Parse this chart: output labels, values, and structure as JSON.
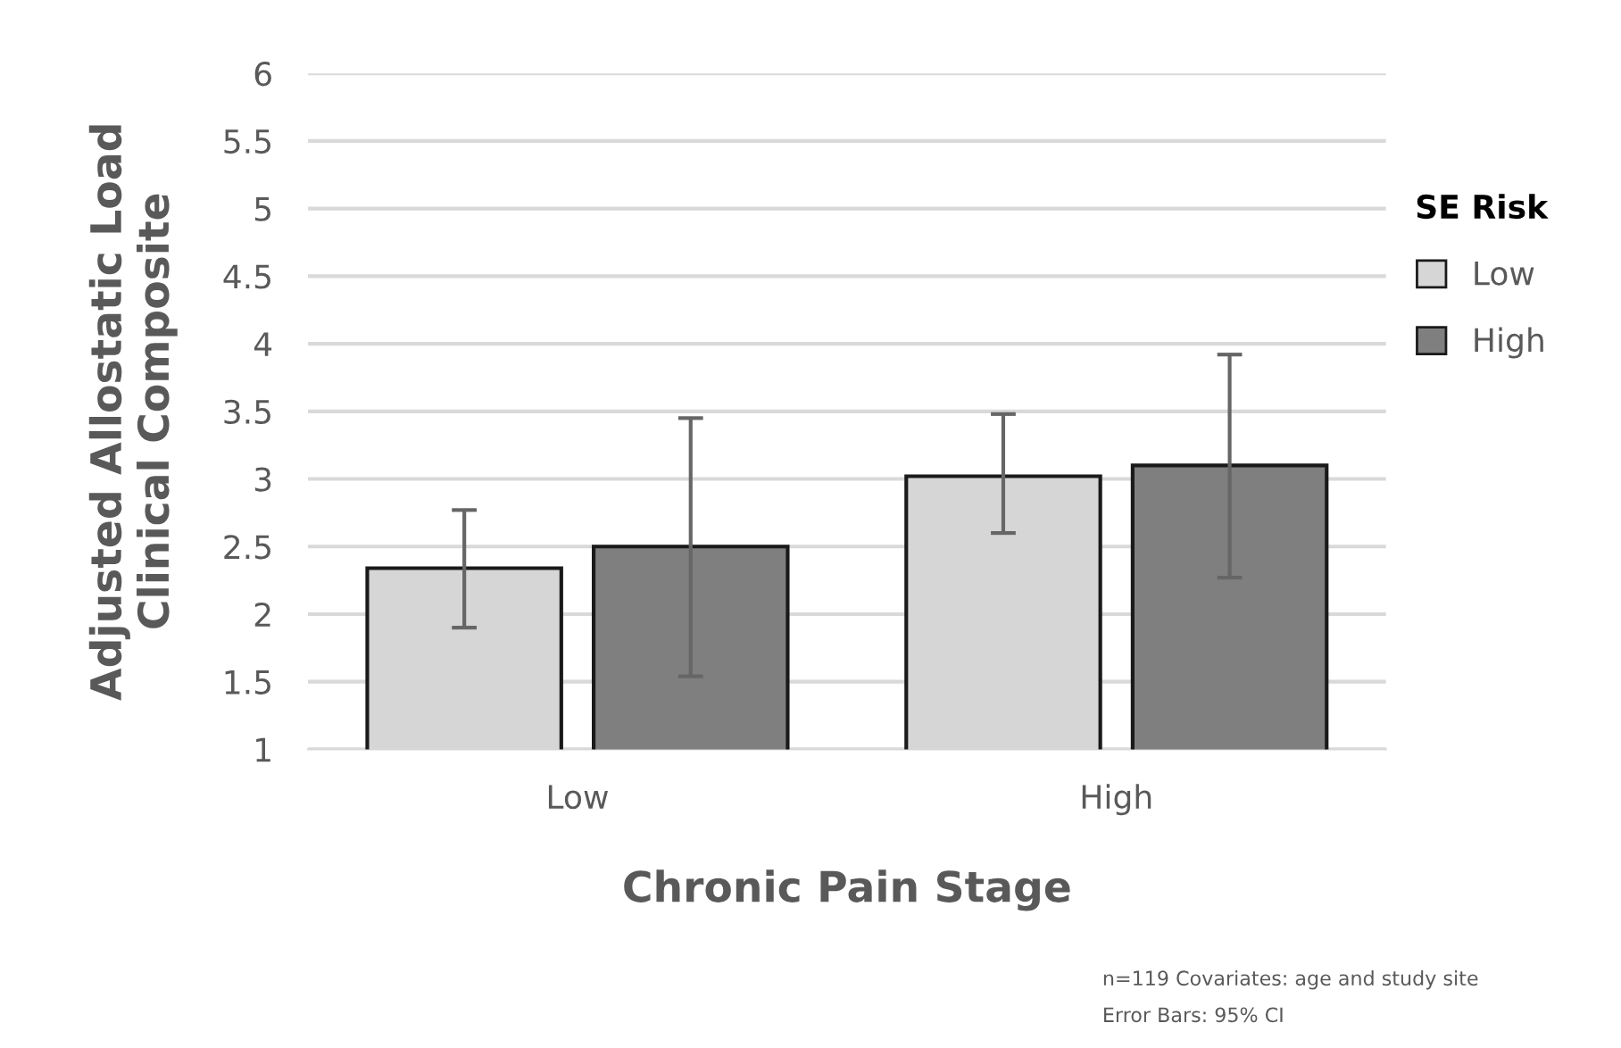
{
  "chart_data": {
    "type": "bar",
    "xlabel": "Chronic Pain Stage",
    "ylabel": "Adjusted Allostatic Load\nClinical Composite",
    "legend_title": "SE Risk",
    "categories": [
      "Low",
      "High"
    ],
    "series": [
      {
        "name": "Low",
        "color": "#d6d6d6",
        "values": [
          2.34,
          3.02
        ],
        "errors": [
          [
            1.9,
            2.77
          ],
          [
            2.6,
            3.48
          ]
        ]
      },
      {
        "name": "High",
        "color": "#7f7f7f",
        "values": [
          2.5,
          3.1
        ],
        "errors": [
          [
            1.54,
            3.45
          ],
          [
            2.27,
            3.92
          ]
        ]
      }
    ],
    "ylim": [
      1,
      6
    ],
    "yticks": [
      1,
      1.5,
      2,
      2.5,
      3,
      3.5,
      4,
      4.5,
      5,
      5.5,
      6
    ],
    "grid": "y",
    "legend": "right",
    "annotations": [
      "n=119 Covariates: age and study site",
      "Error Bars: 95% CI"
    ]
  }
}
